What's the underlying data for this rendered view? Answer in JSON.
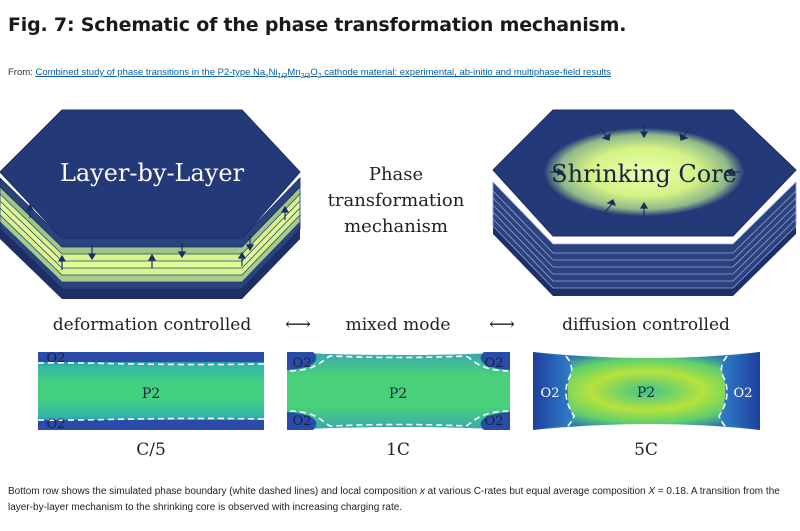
{
  "figure": {
    "label": "Fig. 7:",
    "title": "Schematic of the phase transformation mechanism."
  },
  "source": {
    "prefix": "From:",
    "link_text": {
      "part1": "Combined study of phase transitions in the P2-type Na",
      "sub_x": "x",
      "part2": "Ni",
      "sub_ni": "1/3",
      "part3": "Mn",
      "sub_mn": "2/3",
      "part4": "O",
      "sub_o": "2",
      "part5": " cathode material: experimental, ab-initio and multiphase-field results"
    }
  },
  "schematic": {
    "left_label": "Layer-by-Layer",
    "center_label_lines": [
      "Phase",
      "transformation",
      "mechanism"
    ],
    "right_label": "Shrinking Core",
    "mode_labels": {
      "left": "deformation controlled",
      "middle": "mixed mode",
      "right": "diffusion controlled"
    },
    "arrow_symbol": "⟷"
  },
  "simulations": [
    {
      "rate": "C/5",
      "phase_main": "P2",
      "phase_boundary": "O2"
    },
    {
      "rate": "1C",
      "phase_main": "P2",
      "phase_boundary": "O2"
    },
    {
      "rate": "5C",
      "phase_main": "P2",
      "phase_boundary": "O2"
    }
  ],
  "colors": {
    "navy": "#243a78",
    "yellow_green": "#dcf58c",
    "sim_green": "#3fc98a",
    "sim_blue": "#2a4ca8",
    "link": "#0a5ea8"
  },
  "caption": {
    "part1": "Bottom row shows the simulated phase boundary (white dashed lines) and local composition ",
    "var_x": "x",
    "part2": " at various C-rates but equal average composition ",
    "var_X": "X",
    "part3": " = 0.18. A transition from the layer-by-layer mechanism to the shrinking core is observed with increasing charging rate."
  }
}
